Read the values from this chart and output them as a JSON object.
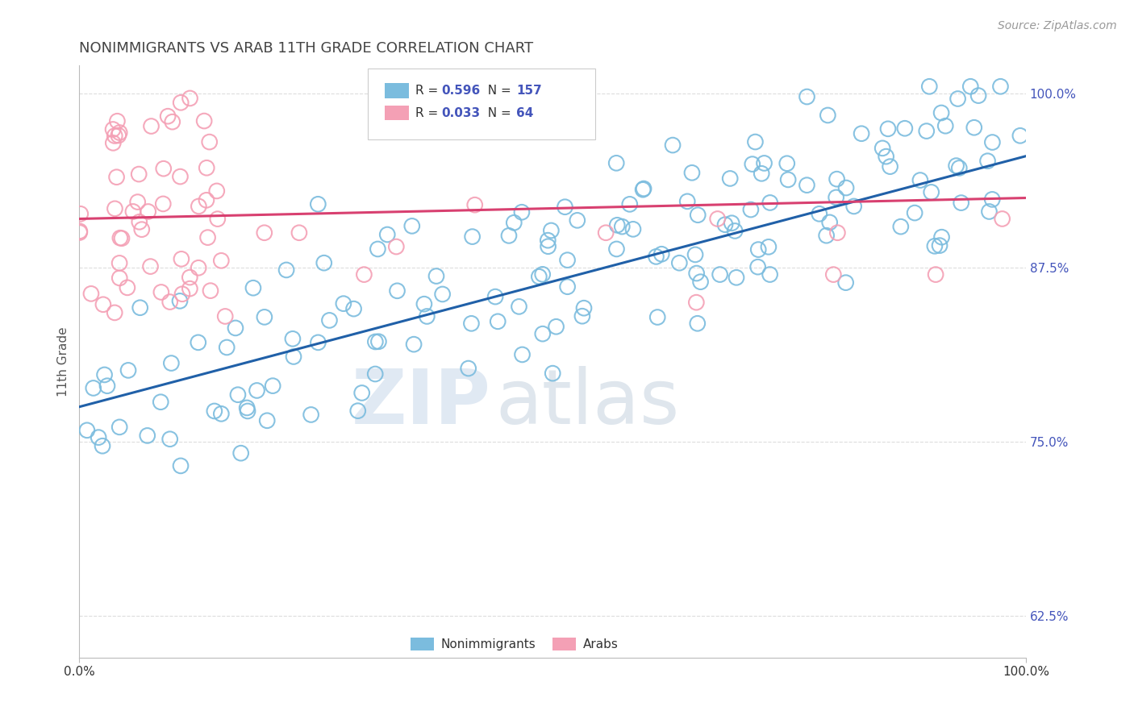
{
  "title": "NONIMMIGRANTS VS ARAB 11TH GRADE CORRELATION CHART",
  "source": "Source: ZipAtlas.com",
  "ylabel": "11th Grade",
  "xlim": [
    0.0,
    1.0
  ],
  "ylim": [
    0.595,
    1.02
  ],
  "yticks": [
    0.625,
    0.75,
    0.875,
    1.0
  ],
  "ytick_labels": [
    "62.5%",
    "75.0%",
    "87.5%",
    "100.0%"
  ],
  "blue_color": "#7bbcde",
  "pink_color": "#f4a0b5",
  "blue_line_color": "#2060a8",
  "pink_line_color": "#d84070",
  "R_blue": 0.596,
  "N_blue": 157,
  "R_pink": 0.033,
  "N_pink": 64,
  "watermark_zip": "ZIP",
  "watermark_atlas": "atlas",
  "legend_label_blue": "Nonimmigrants",
  "legend_label_pink": "Arabs",
  "title_color": "#444444",
  "axis_label_color": "#4455bb",
  "grid_color": "#dddddd",
  "background_color": "#ffffff",
  "seed": 12345
}
